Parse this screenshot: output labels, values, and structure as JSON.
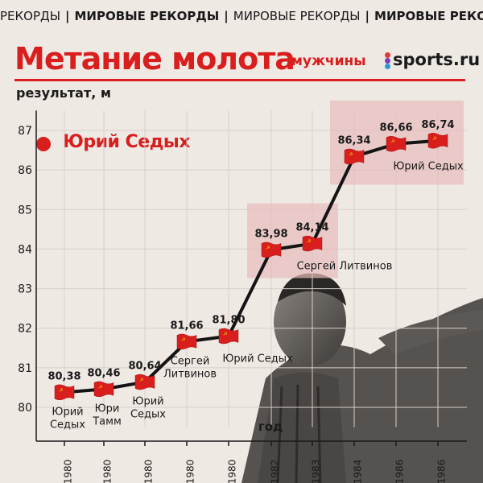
{
  "ticker": [
    "РЕКОРДЫ",
    "МИРОВЫЕ РЕКОРДЫ",
    "МИРОВЫЕ РЕКОРДЫ",
    "МИРОВЫЕ РЕКОРДЫ"
  ],
  "header": {
    "title": "Метание молота",
    "subtitle": "мужчины",
    "logo_text": "sports.ru"
  },
  "highlight_athlete": "Юрий Седых",
  "chart_data": {
    "type": "line",
    "ylabel": "результат, м",
    "xlabel": "год",
    "ylim": [
      79.5,
      87.5
    ],
    "yticks": [
      80,
      81,
      82,
      83,
      84,
      85,
      86,
      87
    ],
    "categories": [
      "1980",
      "1980",
      "1980",
      "1980",
      "1980",
      "1982",
      "1983",
      "1984",
      "1986",
      "1986"
    ],
    "values": [
      80.38,
      80.46,
      80.64,
      81.66,
      81.8,
      83.98,
      84.14,
      86.34,
      86.66,
      86.74
    ],
    "value_labels": [
      "80,38",
      "80,46",
      "80,64",
      "81,66",
      "81,80",
      "83,98",
      "84,14",
      "86,34",
      "86,66",
      "86,74"
    ],
    "athlete_labels": [
      {
        "point": 0,
        "lines": [
          "Юрий",
          "Седых"
        ]
      },
      {
        "point": 1,
        "lines": [
          "Юри",
          "Тамм"
        ]
      },
      {
        "point": 2,
        "lines": [
          "Юрий",
          "Седых"
        ]
      },
      {
        "point": 3,
        "lines": [
          "Сергей",
          "Литвинов"
        ]
      },
      {
        "point": 4,
        "lines": [
          "Юрий Седых"
        ]
      },
      {
        "point": 6,
        "lines": [
          "Сергей Литвинов"
        ]
      },
      {
        "point": 8,
        "lines": [
          "Юрий Седых"
        ]
      }
    ],
    "highlight_groups": [
      [
        5,
        6
      ],
      [
        7,
        8,
        9
      ]
    ],
    "grid": true,
    "colors": {
      "line": "#141414",
      "grid": "#d8cfc8",
      "highlight": "#e7bcbc",
      "flag": "#d91e1e",
      "accent": "#d91e1e"
    }
  }
}
